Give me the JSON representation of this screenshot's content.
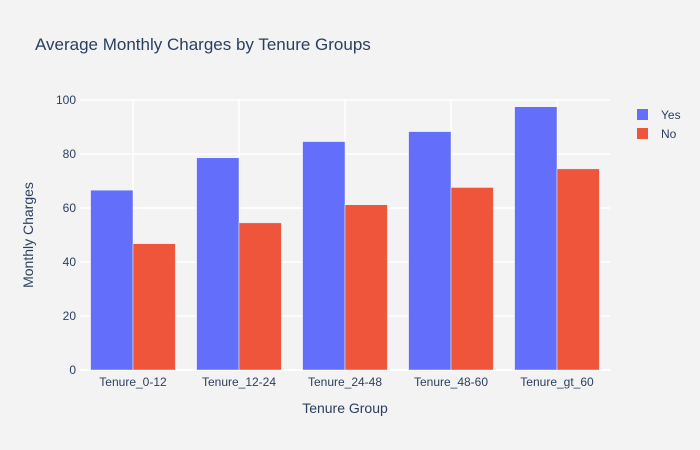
{
  "chart_data": {
    "type": "bar",
    "title": "Average Monthly Charges by Tenure Groups",
    "xlabel": "Tenure Group",
    "ylabel": "Monthly Charges",
    "categories": [
      "Tenure_0-12",
      "Tenure_12-24",
      "Tenure_24-48",
      "Tenure_48-60",
      "Tenure_gt_60"
    ],
    "series": [
      {
        "name": "Yes",
        "color": "#636efa",
        "values": [
          66.6,
          78.6,
          84.6,
          88.3,
          97.5
        ]
      },
      {
        "name": "No",
        "color": "#ef553b",
        "values": [
          46.8,
          54.5,
          61.2,
          67.6,
          74.5
        ]
      }
    ],
    "ylim": [
      0,
      100
    ],
    "yticks": [
      0,
      20,
      40,
      60,
      80,
      100
    ],
    "grid": true,
    "legend_position": "top-right",
    "barmode": "group"
  }
}
